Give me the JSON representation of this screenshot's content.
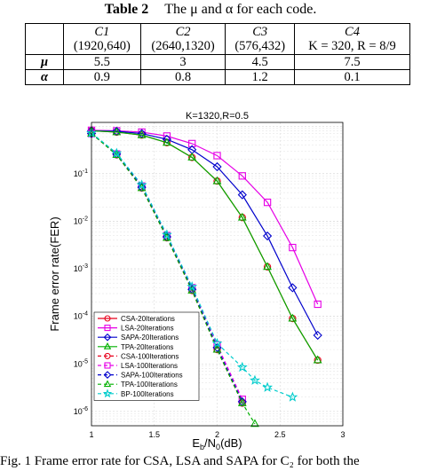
{
  "table": {
    "caption_label": "Table 2",
    "caption_text": "The μ and α for each code.",
    "codes": [
      {
        "name": "C1",
        "params": "(1920,640)"
      },
      {
        "name": "C2",
        "params": "(2640,1320)"
      },
      {
        "name": "C3",
        "params": "(576,432)"
      },
      {
        "name": "C4",
        "params": "K = 320, R = 8/9"
      }
    ],
    "rows": [
      {
        "label": "μ",
        "values": [
          "5.5",
          "3",
          "4.5",
          "7.5"
        ]
      },
      {
        "label": "α",
        "values": [
          "0.9",
          "0.8",
          "1.2",
          "0.1"
        ]
      }
    ]
  },
  "figure_caption": "Fig. 1   Frame error rate for CSA, LSA and SAPA for C₂ for both the",
  "chart_data": {
    "type": "line",
    "title": "K=1320,R=0.5",
    "xlabel": "E_b/N_0(dB)",
    "ylabel": "Frame error rate(FER)",
    "x_tick_labels": [
      "1",
      "1.5",
      "2",
      "2.5",
      "3"
    ],
    "y_tick_labels": [
      "10^-6",
      "10^-5",
      "10^-4",
      "10^-3",
      "10^-2",
      "10^-1"
    ],
    "xlim": [
      1,
      3
    ],
    "ylim": [
      5e-07,
      1.2
    ],
    "y_scale": "log",
    "grid": true,
    "legend_position": "bottom-left",
    "series": [
      {
        "name": "CSA-20Iterations",
        "color": "#e8001c",
        "marker": "circle",
        "dash": "solid",
        "x": [
          1,
          1.2,
          1.4,
          1.6,
          1.8,
          2,
          2.2,
          2.4,
          2.6,
          2.8
        ],
        "y": [
          0.8,
          0.75,
          0.65,
          0.45,
          0.22,
          0.07,
          0.012,
          0.0011,
          9e-05,
          1.2e-05
        ]
      },
      {
        "name": "LSA-20Iterations",
        "color": "#e600e6",
        "marker": "square",
        "dash": "solid",
        "x": [
          1,
          1.2,
          1.4,
          1.6,
          1.8,
          2,
          2.2,
          2.4,
          2.6,
          2.8
        ],
        "y": [
          0.82,
          0.8,
          0.75,
          0.62,
          0.43,
          0.24,
          0.09,
          0.025,
          0.0028,
          0.00018
        ]
      },
      {
        "name": "SAPA-20Iterations",
        "color": "#0000cc",
        "marker": "diamond",
        "dash": "solid",
        "x": [
          1,
          1.2,
          1.4,
          1.6,
          1.8,
          2,
          2.2,
          2.4,
          2.6,
          2.8
        ],
        "y": [
          0.8,
          0.78,
          0.7,
          0.53,
          0.32,
          0.14,
          0.036,
          0.0049,
          0.0004,
          4e-05
        ]
      },
      {
        "name": "TPA-20Iterations",
        "color": "#00b000",
        "marker": "triangle-up",
        "dash": "solid",
        "x": [
          1,
          1.2,
          1.4,
          1.6,
          1.8,
          2,
          2.2,
          2.4,
          2.6,
          2.8
        ],
        "y": [
          0.8,
          0.75,
          0.65,
          0.45,
          0.22,
          0.07,
          0.012,
          0.0011,
          9e-05,
          1.2e-05
        ]
      },
      {
        "name": "CSA-100Iterations",
        "color": "#e8001c",
        "marker": "circle",
        "dash": "dashed",
        "x": [
          1,
          1.2,
          1.4,
          1.6,
          1.8,
          2,
          2.2
        ],
        "y": [
          0.7,
          0.25,
          0.05,
          0.0045,
          0.00035,
          2e-05,
          1.5e-06
        ]
      },
      {
        "name": "LSA-100Iterations",
        "color": "#e600e6",
        "marker": "square",
        "dash": "dashed",
        "x": [
          1,
          1.2,
          1.4,
          1.6,
          1.8,
          2,
          2.2
        ],
        "y": [
          0.7,
          0.26,
          0.055,
          0.005,
          0.0004,
          2.5e-05,
          1.8e-06
        ]
      },
      {
        "name": "SAPA-100Iterations",
        "color": "#0000cc",
        "marker": "diamond",
        "dash": "dashed",
        "x": [
          1,
          1.2,
          1.4,
          1.6,
          1.8,
          2,
          2.2
        ],
        "y": [
          0.7,
          0.26,
          0.052,
          0.0047,
          0.00037,
          2.2e-05,
          1.6e-06
        ]
      },
      {
        "name": "TPA-100Iterations",
        "color": "#00b000",
        "marker": "triangle-up",
        "dash": "dashed",
        "x": [
          1,
          1.2,
          1.4,
          1.6,
          1.8,
          2,
          2.2,
          2.3
        ],
        "y": [
          0.7,
          0.25,
          0.05,
          0.0045,
          0.00035,
          2e-05,
          1.5e-06,
          5.5e-07
        ]
      },
      {
        "name": "BP-100Iterations",
        "color": "#00cccc",
        "marker": "star",
        "dash": "dashed",
        "x": [
          1,
          1.2,
          1.4,
          1.6,
          1.8,
          2,
          2.2,
          2.3,
          2.4,
          2.6
        ],
        "y": [
          0.72,
          0.27,
          0.058,
          0.0052,
          0.00042,
          2.7e-05,
          8.5e-06,
          4.5e-06,
          3.2e-06,
          2e-06
        ]
      }
    ]
  }
}
